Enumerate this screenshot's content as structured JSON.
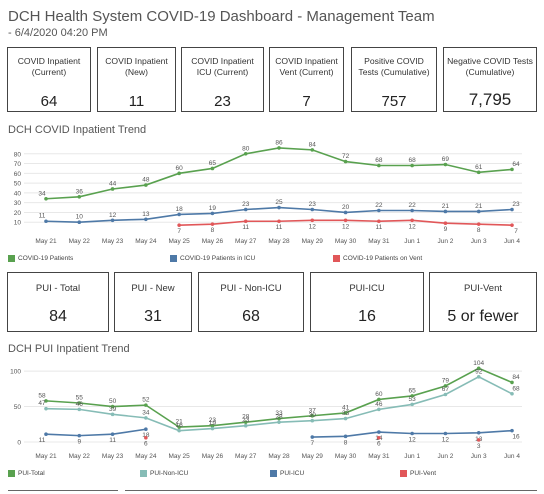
{
  "header": {
    "title": "DCH Health System COVID-19 Dashboard - Management Team",
    "subtitle": "- 6/4/2020 04:20 PM"
  },
  "kpis_top": [
    {
      "label": "COVID Inpatient (Current)",
      "value": "64"
    },
    {
      "label": "COVID Inpatient (New)",
      "value": "11"
    },
    {
      "label": "COVID Inpatient ICU (Current)",
      "value": "23"
    },
    {
      "label": "COVID Inpatient Vent (Current)",
      "value": "7"
    },
    {
      "label": "Positive COVID Tests (Cumulative)",
      "value": "757"
    },
    {
      "label": "Negative COVID Tests (Cumulative)",
      "value": "7,795"
    }
  ],
  "kpis_pui": [
    {
      "label": "PUI - Total",
      "value": "84"
    },
    {
      "label": "PUI - New",
      "value": "31"
    },
    {
      "label": "PUI - Non-ICU",
      "value": "68"
    },
    {
      "label": "PUI-ICU",
      "value": "16"
    },
    {
      "label": "PUI-Vent",
      "value": "5 or fewer"
    }
  ],
  "sections": {
    "covid_trend_title": "DCH COVID Inpatient Trend",
    "pui_trend_title": "DCH PUI Inpatient Trend"
  },
  "colors": {
    "green": "#59a14f",
    "blue": "#4e79a7",
    "red": "#e15759",
    "teal": "#86bcb6",
    "grid": "#e8e8e8"
  },
  "chart_data": [
    {
      "type": "line",
      "title": "DCH COVID Inpatient Trend",
      "x": [
        "May 21",
        "May 22",
        "May 23",
        "May 24",
        "May 25",
        "May 26",
        "May 27",
        "May 28",
        "May 29",
        "May 30",
        "May 31",
        "Jun 1",
        "Jun 2",
        "Jun 3",
        "Jun 4"
      ],
      "yticks": [
        10,
        20,
        30,
        40,
        50,
        60,
        70,
        80
      ],
      "ylim": [
        0,
        90
      ],
      "series": [
        {
          "name": "COVID-19 Patients",
          "color": "#59a14f",
          "values": [
            34,
            36,
            44,
            48,
            60,
            65,
            80,
            86,
            84,
            72,
            68,
            68,
            69,
            61,
            64
          ]
        },
        {
          "name": "COVID-19 Patients in ICU",
          "color": "#4e79a7",
          "values": [
            11,
            10,
            12,
            13,
            18,
            19,
            23,
            25,
            23,
            20,
            22,
            22,
            21,
            21,
            23
          ]
        },
        {
          "name": "COVID-19 Patients on Vent",
          "color": "#e15759",
          "values": [
            null,
            null,
            null,
            null,
            7,
            8,
            11,
            11,
            12,
            12,
            11,
            12,
            9,
            8,
            7
          ]
        }
      ],
      "legend_position": "bottom"
    },
    {
      "type": "line",
      "title": "DCH PUI Inpatient Trend",
      "x": [
        "May 21",
        "May 22",
        "May 23",
        "May 24",
        "May 25",
        "May 26",
        "May 27",
        "May 28",
        "May 29",
        "May 30",
        "May 31",
        "Jun 1",
        "Jun 2",
        "Jun 3",
        "Jun 4"
      ],
      "yticks": [
        0,
        50,
        100
      ],
      "ylim": [
        0,
        110
      ],
      "series": [
        {
          "name": "PUI-Total",
          "color": "#59a14f",
          "values": [
            58,
            55,
            50,
            52,
            21,
            23,
            28,
            33,
            37,
            41,
            60,
            65,
            79,
            104,
            84
          ]
        },
        {
          "name": "PUI-Non-ICU",
          "color": "#86bcb6",
          "values": [
            47,
            46,
            39,
            34,
            16,
            19,
            23,
            28,
            30,
            33,
            46,
            53,
            67,
            92,
            68
          ]
        },
        {
          "name": "PUI-ICU",
          "color": "#4e79a7",
          "values": [
            11,
            9,
            11,
            18,
            null,
            null,
            null,
            null,
            7,
            8,
            14,
            12,
            12,
            13,
            16
          ]
        },
        {
          "name": "PUI-Vent",
          "color": "#e15759",
          "values": [
            null,
            null,
            null,
            6,
            null,
            null,
            null,
            null,
            null,
            null,
            6,
            null,
            null,
            3,
            null
          ]
        }
      ],
      "legend_position": "bottom"
    }
  ]
}
